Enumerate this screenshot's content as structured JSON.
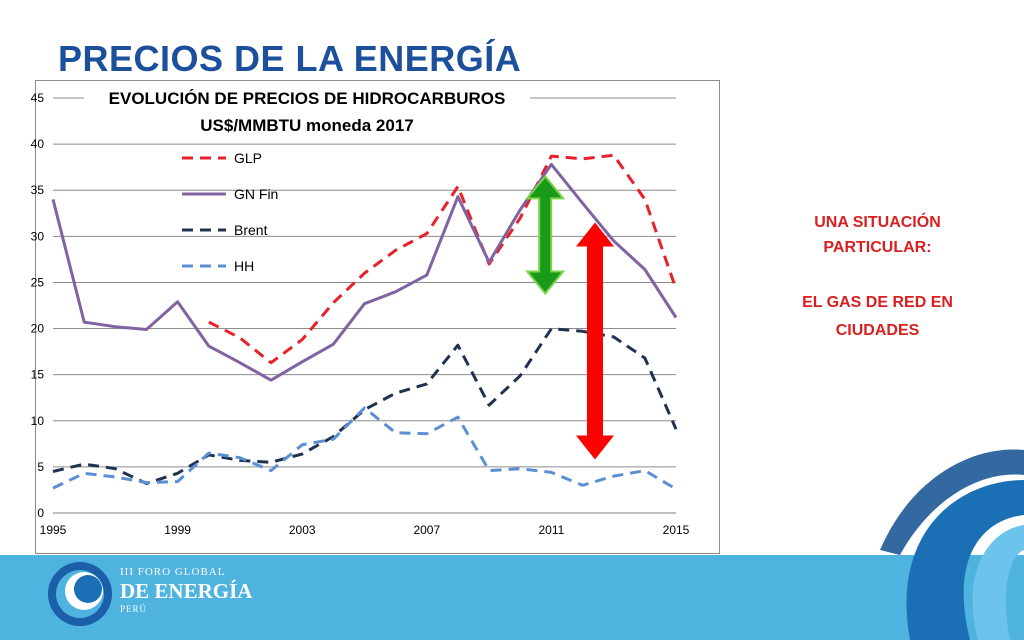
{
  "slide": {
    "title": "PRECIOS DE LA ENERGÍA",
    "note_line1": "UNA SITUACIÓN",
    "note_line2": "PARTICULAR:",
    "note_line3": "EL GAS DE RED EN",
    "note_line4": "CIUDADES"
  },
  "footer": {
    "line1": "III FORO GLOBAL",
    "line2": "DE ENERGÍA",
    "line3": "PERÚ"
  },
  "colors": {
    "title": "#1c4f9c",
    "note": "#d92020",
    "band": "#4fb3df",
    "glp": "#e8202a",
    "gn_fin": "#8064a2",
    "brent": "#1f3350",
    "hh": "#5b8fd4",
    "green_arrow": "#1a9a1a",
    "green_outline": "#7dd34a",
    "red_arrow": "#ff0000"
  },
  "chart_data": {
    "type": "line",
    "title": "EVOLUCIÓN DE PRECIOS DE HIDROCARBUROS",
    "subtitle": "US$/MMBTU moneda 2017",
    "x": [
      1995,
      1996,
      1997,
      1998,
      1999,
      2000,
      2001,
      2002,
      2003,
      2004,
      2005,
      2006,
      2007,
      2008,
      2009,
      2010,
      2011,
      2012,
      2013,
      2014,
      2015
    ],
    "xticks": [
      1995,
      1999,
      2003,
      2007,
      2011,
      2015
    ],
    "ylim": [
      0,
      45
    ],
    "yticks": [
      0,
      5,
      10,
      15,
      20,
      25,
      30,
      35,
      40,
      45
    ],
    "grid": "horizontal",
    "legend": "top-left",
    "series": [
      {
        "name": "GLP",
        "style": "dashed",
        "values": [
          null,
          null,
          null,
          null,
          null,
          20.7,
          19.0,
          16.3,
          18.8,
          22.8,
          26.0,
          28.5,
          30.3,
          35.4,
          27.0,
          32.0,
          38.7,
          38.4,
          38.8,
          34.0,
          24.3
        ]
      },
      {
        "name": "GN Fin",
        "style": "solid",
        "values": [
          34.0,
          20.7,
          20.2,
          19.9,
          22.9,
          18.1,
          16.3,
          14.4,
          16.4,
          18.3,
          22.7,
          24.0,
          25.8,
          34.3,
          27.2,
          32.9,
          37.8,
          33.6,
          29.5,
          26.4,
          21.2
        ]
      },
      {
        "name": "Brent",
        "style": "dashed",
        "values": [
          4.5,
          5.3,
          4.8,
          3.2,
          4.3,
          6.3,
          5.7,
          5.5,
          6.4,
          8.3,
          11.2,
          13.0,
          14.0,
          18.2,
          11.7,
          14.9,
          20.0,
          19.7,
          19.1,
          16.8,
          9.1
        ]
      },
      {
        "name": "HH",
        "style": "dashed",
        "values": [
          2.7,
          4.3,
          3.9,
          3.3,
          3.4,
          6.5,
          6.0,
          4.6,
          7.4,
          8.0,
          11.4,
          8.7,
          8.6,
          10.4,
          4.6,
          4.8,
          4.4,
          3.0,
          4.0,
          4.6,
          2.6
        ]
      }
    ],
    "annotations": [
      {
        "type": "double-arrow",
        "color": "green",
        "x": 2010.8,
        "from": 36.5,
        "to": 23.8
      },
      {
        "type": "double-arrow",
        "color": "red",
        "x": 2012.4,
        "from": 31.5,
        "to": 5.8
      }
    ]
  }
}
